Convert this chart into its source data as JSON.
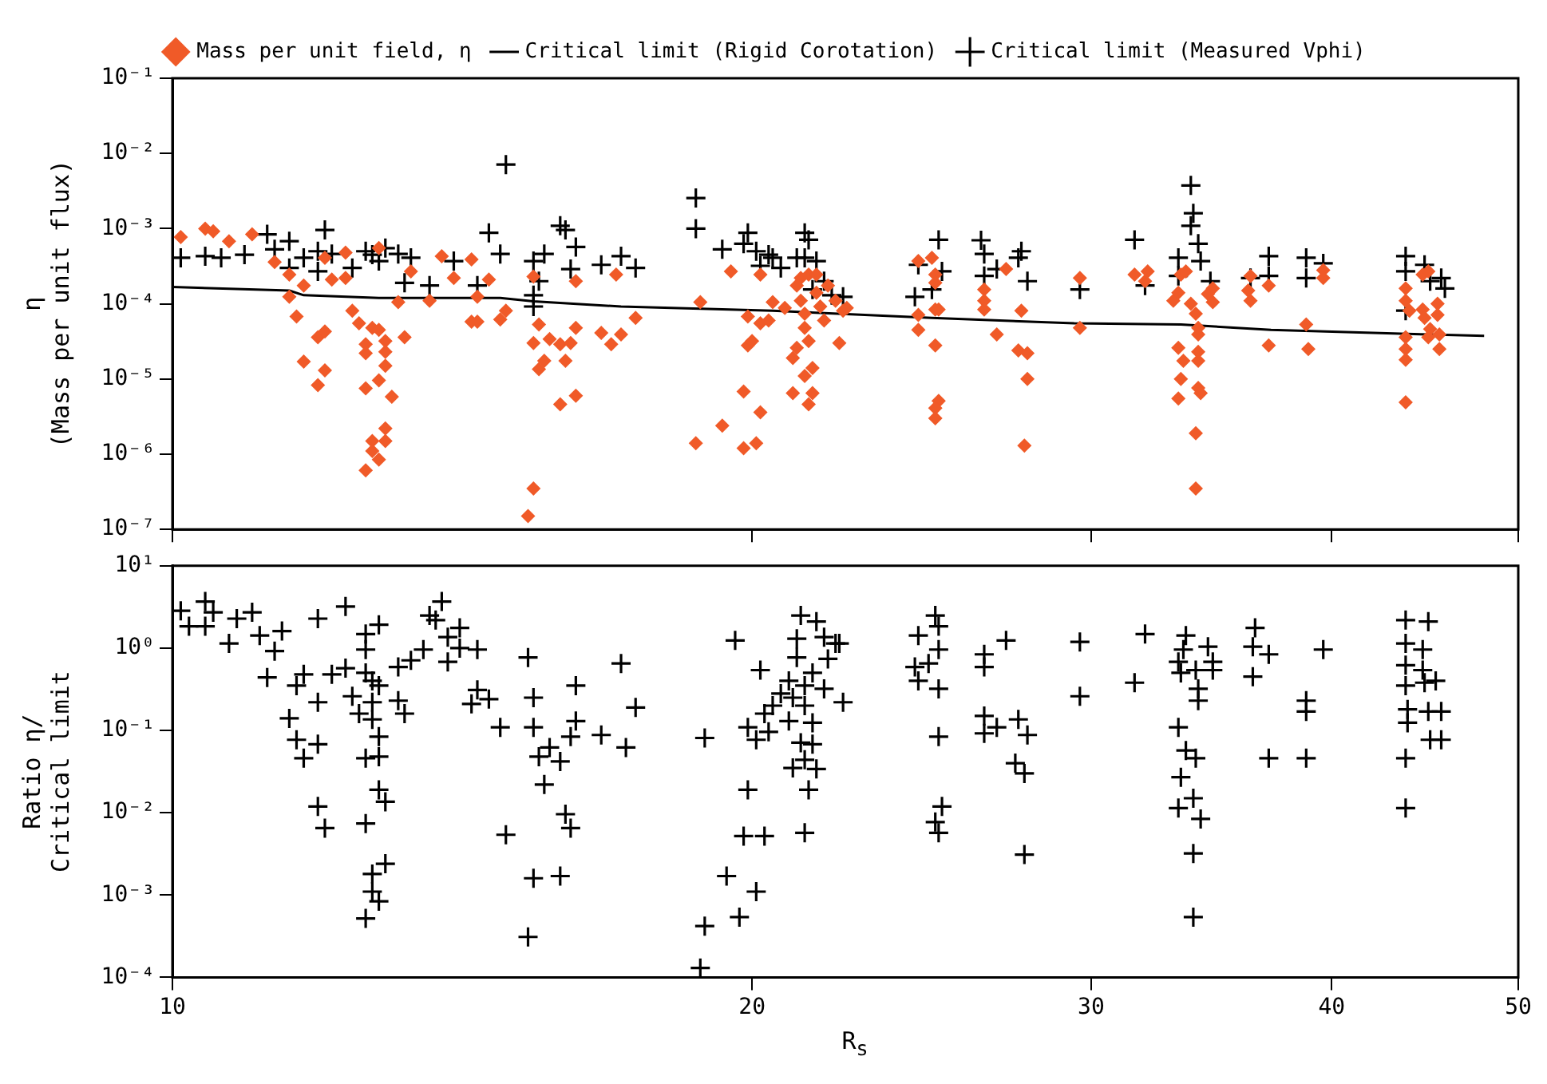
{
  "chart_data": [
    {
      "type": "scatter",
      "ylabel": "η\n(Mass per unit flux)",
      "log": "xy",
      "grid": false,
      "legend": "top",
      "tick_labels": "y",
      "xlim": [
        10,
        50
      ],
      "xticks": [
        {
          "value": 10,
          "label": null
        },
        {
          "value": 20,
          "label": null
        },
        {
          "value": 30,
          "label": null
        },
        {
          "value": 40,
          "label": null
        },
        {
          "value": 50,
          "label": null
        }
      ],
      "ylim": [
        1e-07,
        0.1
      ],
      "yticks": [
        {
          "value": 1e-07,
          "label": "10⁻⁷"
        },
        {
          "value": 1e-06,
          "label": "10⁻⁶"
        },
        {
          "value": 1e-05,
          "label": "10⁻⁵"
        },
        {
          "value": 0.0001,
          "label": "10⁻⁴"
        },
        {
          "value": 0.001,
          "label": "10⁻³"
        },
        {
          "value": 0.01,
          "label": "10⁻²"
        },
        {
          "value": 0.1,
          "label": "10⁻¹"
        }
      ],
      "series": [
        {
          "name": "Mass per unit field, η",
          "type": "scatter",
          "marker": "diamond",
          "color": "#f05a28",
          "x": [
            10.1,
            10.4,
            10.5,
            10.7,
            11.0,
            11.3,
            11.5,
            11.7,
            11.5,
            11.6,
            11.7,
            11.9,
            12.0,
            12.0,
            11.9,
            12.0,
            12.1,
            12.3,
            12.3,
            12.4,
            12.5,
            12.6,
            12.6,
            12.6,
            12.7,
            12.8,
            12.8,
            12.8,
            12.9,
            12.9,
            12.9,
            13.0,
            12.9,
            12.9,
            12.7,
            12.7,
            12.8,
            12.6,
            13.1,
            13.2,
            13.3,
            13.8,
            13.6,
            14.0,
            14.3,
            14.4,
            14.3,
            14.4,
            14.6,
            14.8,
            14.9,
            15.4,
            15.4,
            15.5,
            15.6,
            15.5,
            15.7,
            15.9,
            16.0,
            16.1,
            16.2,
            16.2,
            15.9,
            16.2,
            15.4,
            15.3,
            16.7,
            16.9,
            17.1,
            17.0,
            17.4,
            18.8,
            19.5,
            18.7,
            19.3,
            19.8,
            19.8,
            20.1,
            20.2,
            19.9,
            20.0,
            19.9,
            20.2,
            20.4,
            20.5,
            20.2,
            20.8,
            21.0,
            21.3,
            21.5,
            21.5,
            21.4,
            21.0,
            21.1,
            21.2,
            21.3,
            21.3,
            21.4,
            21.1,
            21.6,
            21.7,
            21.4,
            21.8,
            21.9,
            22.1,
            22.3,
            22.4,
            21.2,
            21.6,
            22.2,
            24.4,
            24.8,
            24.9,
            24.9,
            24.4,
            24.4,
            24.9,
            25.0,
            24.9,
            25.0,
            24.9,
            24.9,
            26.4,
            26.4,
            26.4,
            27.1,
            27.6,
            26.8,
            27.5,
            27.8,
            27.8,
            27.7,
            29.6,
            29.6,
            31.6,
            32.0,
            32.1,
            33.3,
            33.5,
            33.4,
            33.3,
            33.1,
            33.3,
            33.4,
            33.6,
            33.8,
            34.0,
            34.1,
            34.1,
            34.1,
            34.1,
            34.1,
            34.2,
            34.0,
            34.0,
            34.5,
            34.7,
            34.7,
            36.3,
            36.2,
            36.3,
            37.1,
            37.1,
            38.8,
            38.9,
            39.6,
            39.6,
            43.7,
            43.7,
            43.9,
            43.7,
            43.7,
            43.7,
            43.7,
            44.6,
            44.9,
            44.6,
            44.7,
            45.0,
            44.9,
            45.4,
            45.4,
            45.5,
            45.5
          ],
          "values": [
            0.00077,
            0.001,
            0.00092,
            0.00068,
            0.00084,
            0.00036,
            0.000245,
            0.000175,
            0.000124,
            6.8e-05,
            1.7e-05,
            3.6e-05,
            4.3e-05,
            1.3e-05,
            8.3e-06,
            0.00041,
            0.00021,
            0.00022,
            0.00048,
            8.1e-05,
            5.5e-05,
            2.2e-05,
            7.5e-06,
            2.9e-05,
            4.8e-05,
            0.00055,
            4.5e-05,
            9.6e-06,
            3.2e-05,
            2.3e-05,
            1.5e-05,
            5.8e-06,
            2.2e-06,
            1.5e-06,
            1.5e-06,
            1.1e-06,
            8.5e-07,
            6.1e-07,
            0.000105,
            3.6e-05,
            0.00027,
            0.00043,
            0.00011,
            0.00022,
            0.00039,
            0.000124,
            5.8e-05,
            5.8e-05,
            0.00021,
            6.2e-05,
            8.1e-05,
            0.00023,
            3e-05,
            5.3e-05,
            1.75e-05,
            1.35e-05,
            3.4e-05,
            2.9e-05,
            1.75e-05,
            3e-05,
            4.8e-05,
            0.0002,
            4.6e-06,
            6e-06,
            3.5e-07,
            1.5e-07,
            4.1e-05,
            2.9e-05,
            3.9e-05,
            0.000245,
            6.5e-05,
            0.000105,
            0.00027,
            1.4e-06,
            2.4e-06,
            6.8e-06,
            1.2e-06,
            1.4e-06,
            3.6e-06,
            2.8e-05,
            3.2e-05,
            6.8e-05,
            5.5e-05,
            6e-05,
            0.000105,
            0.000245,
            8.8e-05,
            6.5e-06,
            1.1e-05,
            1.4e-05,
            6.5e-06,
            4.6e-06,
            1.9e-05,
            0.000175,
            0.00011,
            7.4e-05,
            4.8e-05,
            3.2e-05,
            2.6e-05,
            0.00014,
            9.2e-05,
            0.000245,
            6e-05,
            0.000175,
            0.00011,
            8.1e-05,
            8.8e-05,
            0.00022,
            0.000245,
            3e-05,
            0.00037,
            0.00041,
            0.000245,
            0.00019,
            7.1e-05,
            4.5e-05,
            8.4e-05,
            8.4e-05,
            2.8e-05,
            5.1e-06,
            4.1e-06,
            3e-06,
            0.000155,
            0.00011,
            8.4e-05,
            0.00029,
            8.1e-05,
            3.9e-05,
            2.4e-05,
            2.2e-05,
            1e-05,
            1.3e-06,
            0.00022,
            4.8e-05,
            0.000245,
            0.0002,
            0.00027,
            2.6e-05,
            1.75e-05,
            1e-05,
            5.5e-06,
            0.00011,
            0.00014,
            0.000245,
            0.00027,
            0.0001,
            7.4e-05,
            4.8e-05,
            3.9e-05,
            2.3e-05,
            1.75e-05,
            7.6e-06,
            6.5e-06,
            1.9e-06,
            3.5e-07,
            0.000135,
            0.000105,
            0.00016,
            0.00011,
            0.00015,
            0.000235,
            0.000175,
            2.8e-05,
            5.3e-05,
            2.5e-05,
            0.00028,
            0.00022,
            0.00016,
            0.00011,
            8.1e-05,
            3.6e-05,
            2.5e-05,
            1.8e-05,
            4.9e-06,
            0.000245,
            0.00027,
            8.4e-05,
            6.5e-05,
            4.6e-05,
            3.6e-05,
            0.0001,
            7.1e-05,
            3.9e-05,
            2.5e-05
          ]
        },
        {
          "name": "Critical limit (Rigid Corotation)",
          "type": "line",
          "marker": "none",
          "color": "#000000",
          "x": [
            10,
            11.5,
            11.7,
            12.8,
            14.8,
            15.4,
            17.1,
            20.5,
            24.8,
            29.4,
            33.4,
            37.2,
            45,
            48
          ],
          "values": [
            0.000167,
            0.00015,
            0.00013,
            0.00012,
            0.00012,
            0.000108,
            9.2e-05,
            8.1e-05,
            6.5e-05,
            5.5e-05,
            5.3e-05,
            4.5e-05,
            3.9e-05,
            3.75e-05
          ]
        },
        {
          "name": "Critical limit (Measured Vphi)",
          "type": "scatter",
          "marker": "cross",
          "color": "#000000",
          "x": [
            10.1,
            10.4,
            10.6,
            10.9,
            11.2,
            11.3,
            11.5,
            11.7,
            11.5,
            11.9,
            12.0,
            11.9,
            12.1,
            12.4,
            12.6,
            12.7,
            12.8,
            12.9,
            13.1,
            13.2,
            13.3,
            13.6,
            14.0,
            14.4,
            14.6,
            14.8,
            14.9,
            15.4,
            15.5,
            15.4,
            15.4,
            15.6,
            15.9,
            16.0,
            16.2,
            16.1,
            16.7,
            17.1,
            17.4,
            18.7,
            18.7,
            19.3,
            19.8,
            19.9,
            20.1,
            20.4,
            20.2,
            20.5,
            20.7,
            21.1,
            21.3,
            21.4,
            21.3,
            21.6,
            21.8,
            21.5,
            22.0,
            22.3,
            24.3,
            24.4,
            24.8,
            25.0,
            25.1,
            26.3,
            26.4,
            26.4,
            26.8,
            27.6,
            27.5,
            27.8,
            29.6,
            31.6,
            32.0,
            33.8,
            33.9,
            33.8,
            34.1,
            33.3,
            33.3,
            34.2,
            34.6,
            36.3,
            37.1,
            37.1,
            38.8,
            38.8,
            39.6,
            43.7,
            43.7,
            43.7,
            44.7,
            45.0,
            45.6,
            45.8
          ],
          "values": [
            0.00041,
            0.00043,
            0.00041,
            0.00045,
            0.00084,
            0.00053,
            0.00068,
            0.00041,
            0.0003,
            0.0005,
            0.00096,
            0.00027,
            0.00046,
            0.0003,
            0.0005,
            0.00045,
            0.00037,
            0.00055,
            0.00046,
            0.00019,
            0.00041,
            0.000175,
            0.00037,
            0.000175,
            0.00088,
            0.00046,
            0.0071,
            0.00037,
            0.0002,
            0.00013,
            9.2e-05,
            0.00046,
            0.00109,
            0.00096,
            0.00057,
            0.00029,
            0.00033,
            0.00043,
            0.0003,
            0.00255,
            0.001,
            0.00053,
            0.00063,
            0.00088,
            0.0005,
            0.00045,
            0.00032,
            0.00041,
            0.0003,
            0.00041,
            0.00088,
            0.00071,
            0.00041,
            0.00037,
            0.0002,
            0.000155,
            0.00013,
            0.000124,
            0.000124,
            0.00033,
            0.000155,
            0.00071,
            0.00027,
            0.0007,
            0.00046,
            0.000235,
            0.00029,
            0.0005,
            0.00041,
            0.0002,
            0.000155,
            0.00071,
            0.000175,
            0.00375,
            0.0016,
            0.00109,
            0.00063,
            0.00041,
            0.000235,
            0.00037,
            0.0002,
            0.00022,
            0.00043,
            0.000235,
            0.00041,
            0.00022,
            0.000345,
            0.00043,
            0.00027,
            8.1e-05,
            0.00033,
            0.0002,
            0.00022,
            0.00016
          ]
        }
      ]
    },
    {
      "type": "scatter",
      "xlabel": "R$_{s}$",
      "ylabel": "Ratio η/\nCritical limit",
      "log": "xy",
      "grid": false,
      "xlim": [
        10,
        50
      ],
      "xticks": [
        10,
        20,
        30,
        40,
        50
      ],
      "ylim": [
        0.0001,
        10
      ],
      "yticks": [
        {
          "value": 0.0001,
          "label": "10⁻⁴"
        },
        {
          "value": 0.001,
          "label": "10⁻³"
        },
        {
          "value": 0.01,
          "label": "10⁻²"
        },
        {
          "value": 0.1,
          "label": "10⁻¹"
        },
        {
          "value": 1,
          "label": "10⁰"
        },
        {
          "value": 10,
          "label": "10¹"
        }
      ],
      "series": [
        {
          "type": "scatter",
          "marker": "cross",
          "color": "#000000",
          "x": [
            10.1,
            10.4,
            10.2,
            10.5,
            10.4,
            10.7,
            10.8,
            11.0,
            11.1,
            11.4,
            11.3,
            11.2,
            11.7,
            11.6,
            11.9,
            11.5,
            11.6,
            11.7,
            11.9,
            11.9,
            12.0,
            11.9,
            12.3,
            12.1,
            12.3,
            12.4,
            12.5,
            12.6,
            12.6,
            12.8,
            12.6,
            12.7,
            12.8,
            12.7,
            12.7,
            12.8,
            12.6,
            12.8,
            12.8,
            12.9,
            12.6,
            12.9,
            12.7,
            12.7,
            12.8,
            12.6,
            13.1,
            13.2,
            13.3,
            13.1,
            13.5,
            13.6,
            13.8,
            13.7,
            13.9,
            13.9,
            14.1,
            14.1,
            14.4,
            14.4,
            14.3,
            14.6,
            14.8,
            14.9,
            15.3,
            15.4,
            15.4,
            15.5,
            15.6,
            15.4,
            15.3,
            15.7,
            15.9,
            16.0,
            16.1,
            15.9,
            16.2,
            16.2,
            16.1,
            16.7,
            17.1,
            17.2,
            17.4,
            18.9,
            19.6,
            20.2,
            19.9,
            20.1,
            20.4,
            20.3,
            20.5,
            19.9,
            19.8,
            20.3,
            19.4,
            20.1,
            19.7,
            18.9,
            18.8,
            21.2,
            21.6,
            21.1,
            21.8,
            22.1,
            21.1,
            21.9,
            20.9,
            21.3,
            21.5,
            21.8,
            21.0,
            21.3,
            20.9,
            21.5,
            22.3,
            21.2,
            21.5,
            21.3,
            21.0,
            21.6,
            21.4,
            21.3,
            20.7,
            22.2,
            24.9,
            25.0,
            24.4,
            25.0,
            24.3,
            24.7,
            24.4,
            25.0,
            25.0,
            25.1,
            24.9,
            25.0,
            26.4,
            26.4,
            27.1,
            26.4,
            26.4,
            26.8,
            27.5,
            27.8,
            27.4,
            27.7,
            27.7,
            29.6,
            29.6,
            32.0,
            31.6,
            33.6,
            33.5,
            33.3,
            33.4,
            34.0,
            34.5,
            34.7,
            34.7,
            34.1,
            34.1,
            33.3,
            33.6,
            34.0,
            33.4,
            33.9,
            33.3,
            34.2,
            33.9,
            33.9,
            36.5,
            36.4,
            37.1,
            36.4,
            37.1,
            38.8,
            38.8,
            39.6,
            38.8,
            43.7,
            44.9,
            43.7,
            44.6,
            43.7,
            44.6,
            43.7,
            44.7,
            45.3,
            43.8,
            44.9,
            45.6,
            43.8,
            45.0,
            45.6,
            43.7,
            43.7
          ],
          "values": [
            2.84,
            3.68,
            1.84,
            2.72,
            1.84,
            1.14,
            2.28,
            2.72,
            1.42,
            1.61,
            0.92,
            0.44,
            0.48,
            0.35,
            0.22,
            0.14,
            0.077,
            0.046,
            0.068,
            0.0119,
            0.0065,
            2.28,
            3.2,
            0.48,
            0.57,
            0.26,
            0.16,
            0.96,
            1.48,
            1.92,
            0.5,
            0.4,
            0.35,
            0.22,
            0.136,
            0.084,
            0.046,
            0.048,
            0.019,
            0.0136,
            0.0074,
            0.0024,
            0.0018,
            0.0011,
            0.00084,
            0.00052,
            0.59,
            0.16,
            0.71,
            0.23,
            0.96,
            2.49,
            3.68,
            2.19,
            0.68,
            1.36,
            1.76,
            1.0,
            0.96,
            0.31,
            0.21,
            0.24,
            0.109,
            0.0054,
            0.77,
            0.25,
            0.109,
            0.048,
            0.022,
            0.0016,
            0.00031,
            0.062,
            0.042,
            0.0096,
            0.0065,
            0.0017,
            0.35,
            0.13,
            0.084,
            0.088,
            0.65,
            0.062,
            0.19,
            0.081,
            1.24,
            0.54,
            0.109,
            0.077,
            0.096,
            0.16,
            0.2,
            0.019,
            0.0052,
            0.0052,
            0.0017,
            0.0011,
            0.00054,
            0.00042,
            0.00013,
            2.49,
            2.1,
            1.3,
            1.36,
            1.14,
            0.77,
            0.74,
            0.4,
            0.35,
            0.5,
            0.32,
            0.25,
            0.2,
            0.13,
            0.124,
            0.22,
            0.071,
            0.068,
            0.044,
            0.035,
            0.034,
            0.019,
            0.0057,
            0.28,
            1.14,
            2.49,
            1.84,
            1.42,
            0.96,
            0.59,
            0.65,
            0.4,
            0.32,
            0.084,
            0.0119,
            0.0077,
            0.0057,
            0.84,
            0.59,
            1.24,
            0.15,
            0.092,
            0.109,
            0.136,
            0.088,
            0.04,
            0.03,
            0.0031,
            1.19,
            0.26,
            1.48,
            0.38,
            1.42,
            0.96,
            0.68,
            0.5,
            0.54,
            1.04,
            0.68,
            0.54,
            0.32,
            0.23,
            0.109,
            0.057,
            0.046,
            0.027,
            0.015,
            0.0114,
            0.0084,
            0.0032,
            0.00054,
            1.76,
            1.04,
            0.84,
            0.45,
            0.046,
            0.23,
            0.17,
            0.96,
            0.046,
            2.19,
            2.1,
            1.14,
            0.96,
            0.62,
            0.54,
            0.35,
            0.38,
            0.4,
            0.18,
            0.17,
            0.17,
            0.124,
            0.077,
            0.077,
            0.046,
            0.0114
          ]
        }
      ]
    }
  ]
}
